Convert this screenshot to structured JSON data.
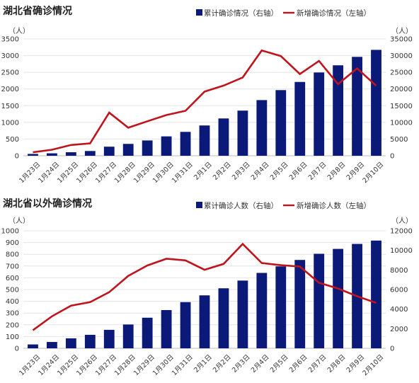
{
  "chart_data": [
    {
      "type": "bar+line",
      "title": "湖北省确诊情况",
      "categories": [
        "1月23日",
        "1月24日",
        "1月25日",
        "1月26日",
        "1月27日",
        "1月28日",
        "1月29日",
        "1月30日",
        "1月31日",
        "2月1日",
        "2月2日",
        "2月3日",
        "2月4日",
        "2月5日",
        "2月6日",
        "2月7日",
        "2月8日",
        "2月9日",
        "2月10日"
      ],
      "series": [
        {
          "name": "累计确诊情况（右轴）",
          "type": "bar",
          "axis": "right",
          "color": "#0b1a78",
          "values": [
            549,
            729,
            1052,
            1423,
            2714,
            3554,
            4586,
            5806,
            7153,
            9074,
            11177,
            13522,
            16678,
            19665,
            22112,
            24953,
            27100,
            29631,
            31728
          ]
        },
        {
          "name": "新增确诊情况（左轴）",
          "type": "line",
          "axis": "left",
          "color": "#c0141c",
          "values": [
            105,
            180,
            323,
            371,
            1291,
            840,
            1032,
            1220,
            1347,
            1921,
            2103,
            2345,
            3156,
            2987,
            2447,
            2841,
            2147,
            2618,
            2097
          ]
        }
      ],
      "left_axis": {
        "unit": "（人）",
        "ylim": [
          0,
          3500
        ],
        "ticks": [
          "0",
          "500",
          "1000",
          "1500",
          "2000",
          "2500",
          "3000",
          "3500"
        ]
      },
      "right_axis": {
        "unit": "（人）",
        "ylim": [
          0,
          35000
        ],
        "ticks": [
          "0",
          "5000",
          "10000",
          "15000",
          "20000",
          "25000",
          "30000",
          "35000"
        ]
      },
      "legend_position": "top-right"
    },
    {
      "type": "bar+line",
      "title": "湖北省以外确诊情况",
      "categories": [
        "1月23日",
        "1月24日",
        "1月25日",
        "1月26日",
        "1月27日",
        "1月28日",
        "1月29日",
        "1月30日",
        "1月31日",
        "2月1日",
        "2月2日",
        "2月3日",
        "2月4日",
        "2月5日",
        "2月6日",
        "2月7日",
        "2月8日",
        "2月9日",
        "2月10日"
      ],
      "series": [
        {
          "name": "累计确诊人数（右轴）",
          "type": "bar",
          "axis": "right",
          "color": "#0b1a78",
          "values": [
            395,
            646,
            1020,
            1377,
            1887,
            2432,
            3124,
            3905,
            4718,
            5407,
            6128,
            6916,
            7700,
            8367,
            9023,
            9652,
            10151,
            10660,
            11002
          ]
        },
        {
          "name": "新增确诊人数（左轴）",
          "type": "line",
          "axis": "left",
          "color": "#c0141c",
          "values": [
            154,
            272,
            363,
            393,
            478,
            616,
            705,
            762,
            748,
            668,
            718,
            888,
            726,
            707,
            696,
            558,
            509,
            443,
            387
          ]
        }
      ],
      "left_axis": {
        "unit": "（人）",
        "ylim": [
          0,
          1000
        ],
        "ticks": [
          "0",
          "100",
          "200",
          "300",
          "400",
          "500",
          "600",
          "700",
          "800",
          "900",
          "1000"
        ]
      },
      "right_axis": {
        "unit": "（人）",
        "ylim": [
          0,
          12000
        ],
        "ticks": [
          "0",
          "2000",
          "4000",
          "6000",
          "8000",
          "10000",
          "12000"
        ]
      },
      "legend_position": "top-right"
    }
  ]
}
